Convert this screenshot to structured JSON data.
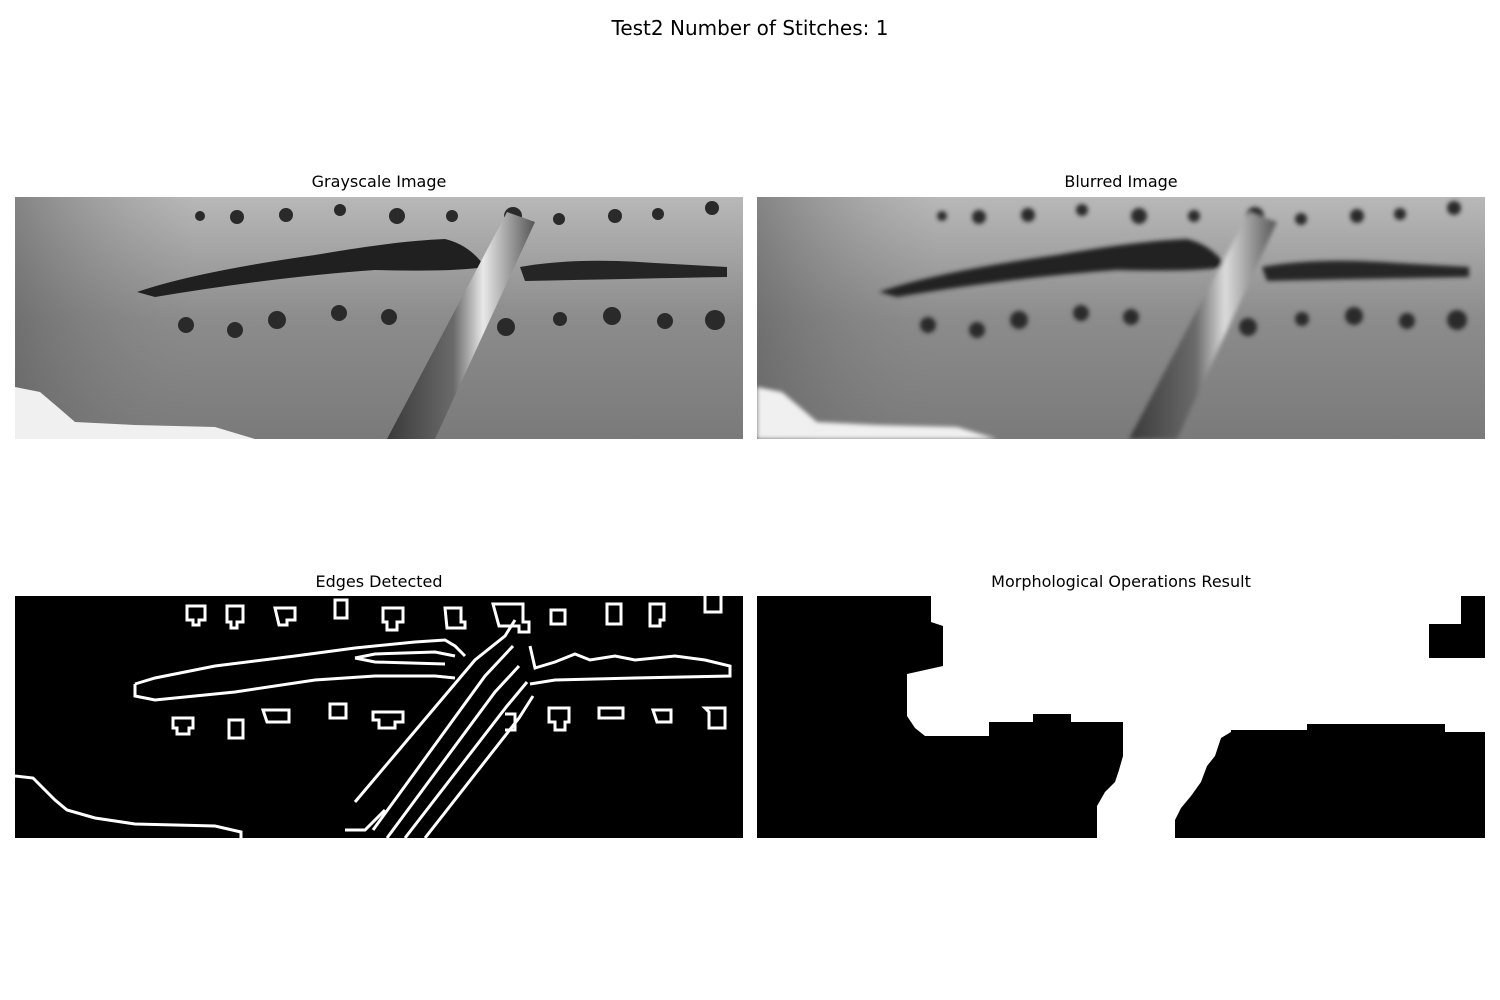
{
  "figure": {
    "title": "Test2 Number of Stitches: 1"
  },
  "panels": [
    {
      "title": "Grayscale Image"
    },
    {
      "title": "Blurred Image"
    },
    {
      "title": "Edges Detected"
    },
    {
      "title": "Morphological Operations Result"
    }
  ],
  "colors": {
    "background": "#ffffff",
    "mask_black": "#000000",
    "mask_white": "#ffffff"
  }
}
